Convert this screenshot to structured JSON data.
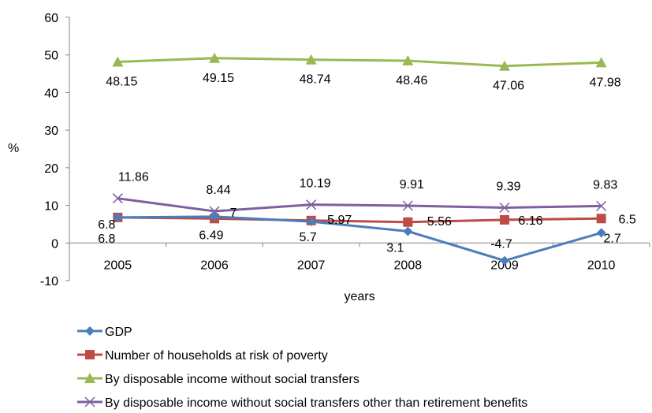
{
  "chart_data": {
    "type": "line",
    "title": "",
    "xlabel": "years",
    "ylabel": "%",
    "categories": [
      "2005",
      "2006",
      "2007",
      "2008",
      "2009",
      "2010"
    ],
    "ylim": [
      -10,
      60
    ],
    "yticks": [
      "-10",
      "0",
      "10",
      "20",
      "30",
      "40",
      "50",
      "60"
    ],
    "grid": false,
    "legend_position": "bottom-left",
    "series": [
      {
        "name": "GDP",
        "color": "#4a7ebb",
        "marker": "diamond",
        "values": [
          6.8,
          7,
          5.7,
          3.1,
          -4.7,
          2.7
        ],
        "labels": [
          "6.8",
          "7",
          "5.7",
          "3.1",
          "-4.7",
          "2.7"
        ]
      },
      {
        "name": "Number of households at risk of poverty",
        "color": "#be4b48",
        "marker": "square",
        "values": [
          6.8,
          6.49,
          5.97,
          5.56,
          6.16,
          6.5
        ],
        "labels": [
          "6.8",
          "6.49",
          "5.97",
          "5.56",
          "6.16",
          "6.5"
        ]
      },
      {
        "name": "By disposable income without social transfers",
        "color": "#98b954",
        "marker": "triangle",
        "values": [
          48.15,
          49.15,
          48.74,
          48.46,
          47.06,
          47.98
        ],
        "labels": [
          "48.15",
          "49.15",
          "48.74",
          "48.46",
          "47.06",
          "47.98"
        ]
      },
      {
        "name": "By disposable income without social transfers other than retirement benefits",
        "color": "#7d60a0",
        "marker": "x",
        "values": [
          11.86,
          8.44,
          10.19,
          9.91,
          9.39,
          9.83
        ],
        "labels": [
          "11.86",
          "8.44",
          "10.19",
          "9.91",
          "9.39",
          "9.83"
        ]
      }
    ]
  }
}
